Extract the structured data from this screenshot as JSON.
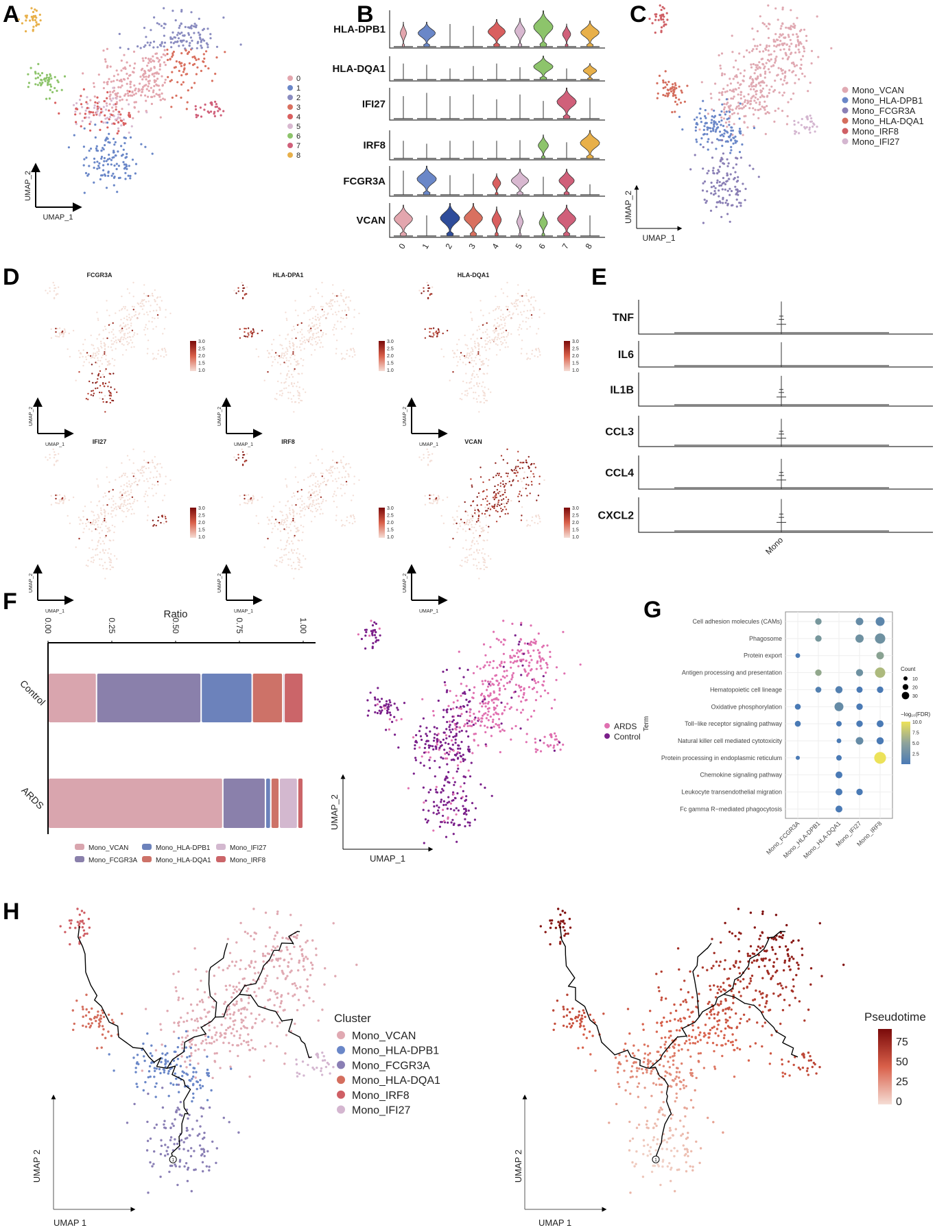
{
  "panels": {
    "A": "A",
    "B": "B",
    "C": "C",
    "D": "D",
    "E": "E",
    "F": "F",
    "G": "G",
    "H": "H"
  },
  "umap_axes": {
    "x": "UMAP_1",
    "y": "UMAP_2",
    "x_h": "UMAP 1",
    "y_h": "UMAP 2"
  },
  "chart_data": [
    {
      "panel": "A",
      "type": "scatter",
      "title": "",
      "xlabel": "UMAP_1",
      "ylabel": "UMAP_2",
      "legend": [
        "0",
        "1",
        "2",
        "3",
        "4",
        "5",
        "6",
        "7",
        "8"
      ],
      "colors": [
        "#e3a6ae",
        "#6a87c8",
        "#8a8cc0",
        "#d9705f",
        "#d95f5f",
        "#d8b8d0",
        "#8dc46b",
        "#d0607a",
        "#e8b04a"
      ]
    },
    {
      "panel": "B",
      "type": "violin",
      "categories": [
        "0",
        "1",
        "2",
        "3",
        "4",
        "5",
        "6",
        "7",
        "8"
      ],
      "genes": [
        "HLA-DPB1",
        "HLA-DQA1",
        "IFI27",
        "IRF8",
        "FCGR3A",
        "VCAN"
      ],
      "colors": [
        "#e3a6ae",
        "#6a87c8",
        "#2e4c9a",
        "#d9705f",
        "#d95f5f",
        "#d8b8d0",
        "#8dc46b",
        "#d0607a",
        "#e8b04a"
      ],
      "height": [
        [
          0.65,
          0.65,
          0.6,
          0.55,
          0.72,
          0.75,
          0.95,
          0.6,
          0.68
        ],
        [
          0.65,
          0.6,
          0.45,
          0.55,
          0.65,
          0.5,
          0.95,
          0.45,
          0.65
        ],
        [
          0.7,
          0.8,
          0.7,
          0.75,
          0.6,
          0.75,
          0.55,
          0.95,
          0.65
        ],
        [
          0.6,
          0.5,
          0.6,
          0.6,
          0.6,
          0.62,
          0.8,
          0.55,
          0.95
        ],
        [
          0.8,
          0.95,
          0.65,
          0.7,
          0.7,
          0.85,
          0.6,
          0.85,
          0.35
        ],
        [
          0.9,
          0.6,
          0.95,
          0.95,
          0.85,
          0.75,
          0.7,
          0.9,
          0.6
        ]
      ],
      "width": [
        [
          0.3,
          0.85,
          0,
          0,
          0.85,
          0.5,
          0.95,
          0.4,
          0.9
        ],
        [
          0,
          0.05,
          0,
          0,
          0.05,
          0,
          0.95,
          0,
          0.65
        ],
        [
          0,
          0,
          0,
          0,
          0,
          0,
          0,
          0.95,
          0
        ],
        [
          0,
          0,
          0,
          0,
          0,
          0,
          0.5,
          0,
          0.95
        ],
        [
          0,
          0.95,
          0,
          0,
          0.4,
          0.85,
          0,
          0.75,
          0
        ],
        [
          0.9,
          0,
          0.95,
          0.9,
          0.45,
          0.3,
          0.4,
          0.9,
          0
        ]
      ]
    },
    {
      "panel": "C",
      "type": "scatter",
      "xlabel": "UMAP_1",
      "ylabel": "UMAP_2",
      "legend": [
        "Mono_VCAN",
        "Mono_HLA-DPB1",
        "Mono_FCGR3A",
        "Mono_HLA-DQA1",
        "Mono_IRF8",
        "Mono_IFI27"
      ],
      "colors": [
        "#e0a9b2",
        "#6a87c8",
        "#8a7fb5",
        "#d46e5e",
        "#cf5f65",
        "#d4b6d0"
      ]
    },
    {
      "panel": "D",
      "type": "scatter",
      "titles": [
        "FCGR3A",
        "HLA-DPA1",
        "HLA-DQA1",
        "IFI27",
        "IRF8",
        "VCAN"
      ],
      "colorbar_ticks": [
        "3.0",
        "2.5",
        "2.0",
        "1.5",
        "1.0"
      ],
      "color_range": [
        1.0,
        3.0
      ]
    },
    {
      "panel": "E",
      "type": "violin",
      "categories": [
        "Mono"
      ],
      "genes": [
        "TNF",
        "IL6",
        "IL1B",
        "CCL3",
        "CCL4",
        "CXCL2"
      ],
      "height": [
        0.95,
        0.95,
        0.9,
        0.9,
        0.9,
        0.95
      ]
    },
    {
      "panel": "F",
      "type": "bar",
      "orientation": "horizontal-stacked",
      "title": "Ratio",
      "categories": [
        "Control",
        "ARDS"
      ],
      "xlim": [
        0,
        1
      ],
      "xticks": [
        "0.00",
        "0.25",
        "0.50",
        "0.75",
        "1.00"
      ],
      "series": [
        {
          "name": "Mono_VCAN",
          "values": [
            0.19,
            0.685
          ],
          "color": "#d9a5ae"
        },
        {
          "name": "Mono_FCGR3A",
          "values": [
            0.41,
            0.167
          ],
          "color": "#8a80ab"
        },
        {
          "name": "Mono_HLA-DPB1",
          "values": [
            0.2,
            0.021
          ],
          "color": "#6c82bb"
        },
        {
          "name": "Mono_HLA-DQA1",
          "values": [
            0.12,
            0.033
          ],
          "color": "#cd7268"
        },
        {
          "name": "Mono_IFI27",
          "values": [
            0.005,
            0.072
          ],
          "color": "#d3b8cf"
        },
        {
          "name": "Mono_IRF8",
          "values": [
            0.075,
            0.022
          ],
          "color": "#cb6569"
        }
      ]
    },
    {
      "panel": "F",
      "type": "scatter",
      "xlabel": "UMAP_1",
      "ylabel": "UMAP_2",
      "legend": [
        "ARDS",
        "Control"
      ],
      "colors": [
        "#e070b0",
        "#7a1f8a"
      ]
    },
    {
      "panel": "G",
      "type": "scatter",
      "ylabel": "Term",
      "terms": [
        "Cell adhesion molecules (CAMs)",
        "Phagosome",
        "Protein export",
        "Antigen processing and presentation",
        "Hematopoietic cell lineage",
        "Oxidative phosphorylation",
        "Toll−like receptor signaling pathway",
        "Natural killer cell mediated cytotoxicity",
        "Protein processing in endoplasmic reticulum",
        "Chemokine signaling pathway",
        "Leukocyte transendothelial migration",
        "Fc gamma R−mediated phagocytosis"
      ],
      "categories": [
        "Mono_FCGR3A",
        "Mono_HLA-DPB1",
        "Mono_HLA-DQA1",
        "Mono_IFI27",
        "Mono_IRF8"
      ],
      "points": [
        {
          "term": 0,
          "cat": 1,
          "count": 8,
          "neglog10fdr": 3.5
        },
        {
          "term": 0,
          "cat": 3,
          "count": 12,
          "neglog10fdr": 2.5
        },
        {
          "term": 0,
          "cat": 4,
          "count": 18,
          "neglog10fdr": 2
        },
        {
          "term": 1,
          "cat": 1,
          "count": 8,
          "neglog10fdr": 3.5
        },
        {
          "term": 1,
          "cat": 3,
          "count": 15,
          "neglog10fdr": 3
        },
        {
          "term": 1,
          "cat": 4,
          "count": 25,
          "neglog10fdr": 3
        },
        {
          "term": 2,
          "cat": 0,
          "count": 3,
          "neglog10fdr": 1
        },
        {
          "term": 2,
          "cat": 4,
          "count": 12,
          "neglog10fdr": 4.5
        },
        {
          "term": 3,
          "cat": 1,
          "count": 8,
          "neglog10fdr": 5
        },
        {
          "term": 3,
          "cat": 3,
          "count": 10,
          "neglog10fdr": 3
        },
        {
          "term": 3,
          "cat": 4,
          "count": 25,
          "neglog10fdr": 6.5
        },
        {
          "term": 4,
          "cat": 1,
          "count": 6,
          "neglog10fdr": 1.5
        },
        {
          "term": 4,
          "cat": 2,
          "count": 10,
          "neglog10fdr": 1.5
        },
        {
          "term": 4,
          "cat": 3,
          "count": 7,
          "neglog10fdr": 1
        },
        {
          "term": 4,
          "cat": 4,
          "count": 8,
          "neglog10fdr": 1
        },
        {
          "term": 5,
          "cat": 0,
          "count": 6,
          "neglog10fdr": 1
        },
        {
          "term": 5,
          "cat": 2,
          "count": 18,
          "neglog10fdr": 2.5
        },
        {
          "term": 5,
          "cat": 3,
          "count": 8,
          "neglog10fdr": 1
        },
        {
          "term": 6,
          "cat": 0,
          "count": 6,
          "neglog10fdr": 1
        },
        {
          "term": 6,
          "cat": 2,
          "count": 5,
          "neglog10fdr": 1
        },
        {
          "term": 6,
          "cat": 3,
          "count": 8,
          "neglog10fdr": 1
        },
        {
          "term": 6,
          "cat": 4,
          "count": 9,
          "neglog10fdr": 1
        },
        {
          "term": 7,
          "cat": 2,
          "count": 3,
          "neglog10fdr": 1
        },
        {
          "term": 7,
          "cat": 3,
          "count": 12,
          "neglog10fdr": 2.5
        },
        {
          "term": 7,
          "cat": 4,
          "count": 10,
          "neglog10fdr": 1
        },
        {
          "term": 8,
          "cat": 0,
          "count": 2,
          "neglog10fdr": 1
        },
        {
          "term": 8,
          "cat": 2,
          "count": 5,
          "neglog10fdr": 1
        },
        {
          "term": 8,
          "cat": 4,
          "count": 35,
          "neglog10fdr": 10
        },
        {
          "term": 9,
          "cat": 2,
          "count": 9,
          "neglog10fdr": 1
        },
        {
          "term": 10,
          "cat": 2,
          "count": 9,
          "neglog10fdr": 1
        },
        {
          "term": 10,
          "cat": 3,
          "count": 8,
          "neglog10fdr": 1
        },
        {
          "term": 11,
          "cat": 2,
          "count": 9,
          "neglog10fdr": 1
        }
      ],
      "size_legend": {
        "title": "Count",
        "values": [
          "10",
          "20",
          "30"
        ]
      },
      "color_legend": {
        "title": "−log₁₀(FDR)",
        "ticks": [
          "10.0",
          "7.5",
          "5.0",
          "2.5"
        ],
        "low": "#4a7ab5",
        "high": "#ece25a"
      }
    },
    {
      "panel": "H",
      "type": "scatter",
      "xlabel": "UMAP 1",
      "ylabel": "UMAP 2",
      "legend_title": "Cluster",
      "legend": [
        "Mono_VCAN",
        "Mono_HLA-DPB1",
        "Mono_FCGR3A",
        "Mono_HLA-DQA1",
        "Mono_IRF8",
        "Mono_IFI27"
      ],
      "colors": [
        "#e0a9b2",
        "#6a87c8",
        "#8a7fb5",
        "#d46e5e",
        "#cf5f65",
        "#d4b6d0"
      ],
      "root_label": "1"
    },
    {
      "panel": "H",
      "type": "scatter",
      "xlabel": "UMAP 1",
      "ylabel": "UMAP 2",
      "legend_title": "Pseudotime",
      "ticks": [
        "75",
        "50",
        "25",
        "0"
      ],
      "range": [
        0,
        90
      ]
    }
  ]
}
